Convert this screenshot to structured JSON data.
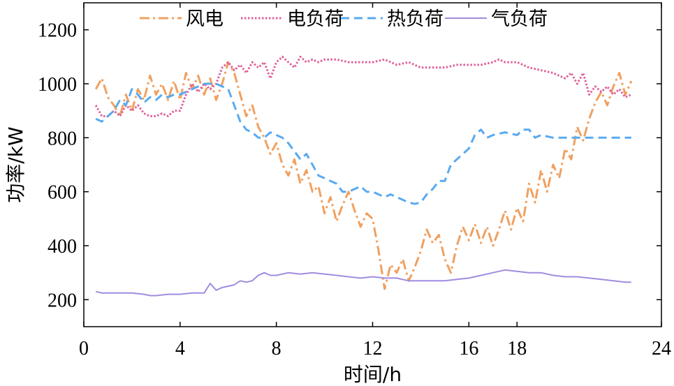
{
  "chart_data": {
    "type": "line",
    "title": "",
    "xlabel": "时间/h",
    "ylabel": "功率/kW",
    "xlim": [
      0,
      24
    ],
    "ylim": [
      100,
      1300
    ],
    "x_ticks": [
      0,
      4,
      8,
      12,
      16,
      18,
      24
    ],
    "x_tick_labels": [
      "0",
      "4",
      "8",
      "12",
      "16",
      "18",
      "24"
    ],
    "y_ticks": [
      200,
      400,
      600,
      800,
      1000,
      1200
    ],
    "y_tick_labels": [
      "200",
      "400",
      "600",
      "800",
      "1000",
      "1200"
    ],
    "grid": false,
    "legend_position": "top",
    "series": [
      {
        "name": "风电",
        "color": "#f0a060",
        "style": "dashdot",
        "points": [
          [
            0.5,
            980
          ],
          [
            0.75,
            1020
          ],
          [
            1.0,
            950
          ],
          [
            1.25,
            920
          ],
          [
            1.5,
            880
          ],
          [
            1.75,
            960
          ],
          [
            2.0,
            900
          ],
          [
            2.25,
            980
          ],
          [
            2.5,
            940
          ],
          [
            2.75,
            1030
          ],
          [
            3.0,
            960
          ],
          [
            3.25,
            1000
          ],
          [
            3.5,
            940
          ],
          [
            3.75,
            1010
          ],
          [
            4.0,
            940
          ],
          [
            4.25,
            1040
          ],
          [
            4.5,
            980
          ],
          [
            4.75,
            1030
          ],
          [
            5.0,
            960
          ],
          [
            5.25,
            1020
          ],
          [
            5.5,
            940
          ],
          [
            5.75,
            1000
          ],
          [
            6.0,
            1080
          ],
          [
            6.25,
            1040
          ],
          [
            6.5,
            960
          ],
          [
            6.75,
            880
          ],
          [
            7.0,
            920
          ],
          [
            7.25,
            840
          ],
          [
            7.5,
            800
          ],
          [
            7.75,
            740
          ],
          [
            8.0,
            780
          ],
          [
            8.25,
            700
          ],
          [
            8.5,
            660
          ],
          [
            8.75,
            720
          ],
          [
            9.0,
            630
          ],
          [
            9.25,
            680
          ],
          [
            9.5,
            600
          ],
          [
            9.75,
            620
          ],
          [
            10.0,
            520
          ],
          [
            10.25,
            580
          ],
          [
            10.5,
            490
          ],
          [
            10.75,
            550
          ],
          [
            11.0,
            600
          ],
          [
            11.25,
            530
          ],
          [
            11.5,
            470
          ],
          [
            11.75,
            520
          ],
          [
            12.0,
            500
          ],
          [
            12.25,
            380
          ],
          [
            12.5,
            240
          ],
          [
            12.75,
            330
          ],
          [
            13.0,
            300
          ],
          [
            13.25,
            350
          ],
          [
            13.5,
            270
          ],
          [
            13.75,
            320
          ],
          [
            14.0,
            380
          ],
          [
            14.25,
            460
          ],
          [
            14.5,
            410
          ],
          [
            14.75,
            440
          ],
          [
            15.0,
            350
          ],
          [
            15.25,
            300
          ],
          [
            15.5,
            400
          ],
          [
            15.75,
            470
          ],
          [
            16.0,
            420
          ],
          [
            16.25,
            480
          ],
          [
            16.5,
            410
          ],
          [
            16.75,
            470
          ],
          [
            17.0,
            400
          ],
          [
            17.25,
            460
          ],
          [
            17.5,
            530
          ],
          [
            17.75,
            460
          ],
          [
            18.0,
            540
          ],
          [
            18.25,
            490
          ],
          [
            18.5,
            630
          ],
          [
            18.75,
            560
          ],
          [
            19.0,
            680
          ],
          [
            19.25,
            600
          ],
          [
            19.5,
            700
          ],
          [
            19.75,
            650
          ],
          [
            20.0,
            760
          ],
          [
            20.25,
            720
          ],
          [
            20.5,
            840
          ],
          [
            20.75,
            790
          ],
          [
            21.0,
            870
          ],
          [
            21.25,
            930
          ],
          [
            21.5,
            970
          ],
          [
            21.75,
            920
          ],
          [
            22.0,
            990
          ],
          [
            22.25,
            1040
          ],
          [
            22.5,
            960
          ],
          [
            22.75,
            1010
          ]
        ]
      },
      {
        "name": "电负荷",
        "color": "#e0609a",
        "style": "dotted",
        "points": [
          [
            0.5,
            920
          ],
          [
            0.75,
            880
          ],
          [
            1.0,
            880
          ],
          [
            1.25,
            900
          ],
          [
            1.5,
            880
          ],
          [
            1.75,
            920
          ],
          [
            2.0,
            900
          ],
          [
            2.25,
            920
          ],
          [
            2.5,
            890
          ],
          [
            2.75,
            880
          ],
          [
            3.0,
            880
          ],
          [
            3.25,
            890
          ],
          [
            3.5,
            880
          ],
          [
            3.75,
            900
          ],
          [
            4.0,
            900
          ],
          [
            4.25,
            960
          ],
          [
            4.5,
            1000
          ],
          [
            4.75,
            970
          ],
          [
            5.0,
            1000
          ],
          [
            5.25,
            980
          ],
          [
            5.5,
            1000
          ],
          [
            5.75,
            1060
          ],
          [
            6.0,
            1080
          ],
          [
            6.25,
            1050
          ],
          [
            6.5,
            1070
          ],
          [
            6.75,
            1040
          ],
          [
            7.0,
            1080
          ],
          [
            7.25,
            1060
          ],
          [
            7.5,
            1080
          ],
          [
            7.75,
            1020
          ],
          [
            8.0,
            1080
          ],
          [
            8.25,
            1100
          ],
          [
            8.5,
            1080
          ],
          [
            8.75,
            1060
          ],
          [
            9.0,
            1100
          ],
          [
            9.25,
            1080
          ],
          [
            9.5,
            1090
          ],
          [
            9.75,
            1080
          ],
          [
            10.0,
            1090
          ],
          [
            10.5,
            1090
          ],
          [
            11.0,
            1080
          ],
          [
            11.5,
            1080
          ],
          [
            12.0,
            1080
          ],
          [
            12.5,
            1090
          ],
          [
            13.0,
            1070
          ],
          [
            13.5,
            1080
          ],
          [
            14.0,
            1060
          ],
          [
            14.5,
            1060
          ],
          [
            15.0,
            1060
          ],
          [
            15.5,
            1070
          ],
          [
            16.0,
            1070
          ],
          [
            16.5,
            1070
          ],
          [
            17.0,
            1080
          ],
          [
            17.25,
            1090
          ],
          [
            17.5,
            1080
          ],
          [
            18.0,
            1080
          ],
          [
            18.5,
            1060
          ],
          [
            19.0,
            1050
          ],
          [
            19.5,
            1040
          ],
          [
            20.0,
            1020
          ],
          [
            20.25,
            1040
          ],
          [
            20.5,
            1000
          ],
          [
            20.75,
            1040
          ],
          [
            21.0,
            960
          ],
          [
            21.25,
            990
          ],
          [
            21.5,
            970
          ],
          [
            21.75,
            990
          ],
          [
            22.0,
            960
          ],
          [
            22.25,
            980
          ],
          [
            22.5,
            950
          ],
          [
            22.75,
            960
          ]
        ]
      },
      {
        "name": "热负荷",
        "color": "#5aaaf0",
        "style": "dashed",
        "points": [
          [
            0.5,
            870
          ],
          [
            0.75,
            860
          ],
          [
            1.0,
            880
          ],
          [
            1.25,
            900
          ],
          [
            1.5,
            940
          ],
          [
            1.75,
            920
          ],
          [
            2.0,
            980
          ],
          [
            2.25,
            960
          ],
          [
            2.5,
            930
          ],
          [
            2.75,
            950
          ],
          [
            3.0,
            940
          ],
          [
            3.25,
            960
          ],
          [
            3.5,
            950
          ],
          [
            3.75,
            960
          ],
          [
            4.0,
            960
          ],
          [
            4.25,
            970
          ],
          [
            4.5,
            980
          ],
          [
            4.75,
            990
          ],
          [
            5.0,
            1000
          ],
          [
            5.5,
            1000
          ],
          [
            6.0,
            980
          ],
          [
            6.25,
            920
          ],
          [
            6.5,
            860
          ],
          [
            6.75,
            830
          ],
          [
            7.0,
            820
          ],
          [
            7.25,
            800
          ],
          [
            7.5,
            800
          ],
          [
            7.75,
            820
          ],
          [
            8.0,
            810
          ],
          [
            8.25,
            800
          ],
          [
            8.5,
            780
          ],
          [
            8.75,
            750
          ],
          [
            9.0,
            720
          ],
          [
            9.25,
            740
          ],
          [
            9.5,
            700
          ],
          [
            9.75,
            660
          ],
          [
            10.0,
            650
          ],
          [
            10.25,
            640
          ],
          [
            10.5,
            630
          ],
          [
            10.75,
            600
          ],
          [
            11.0,
            600
          ],
          [
            11.25,
            610
          ],
          [
            11.5,
            620
          ],
          [
            11.75,
            600
          ],
          [
            12.0,
            600
          ],
          [
            12.25,
            590
          ],
          [
            12.5,
            580
          ],
          [
            12.75,
            590
          ],
          [
            13.0,
            580
          ],
          [
            13.25,
            570
          ],
          [
            13.5,
            560
          ],
          [
            13.75,
            555
          ],
          [
            14.0,
            560
          ],
          [
            14.25,
            590
          ],
          [
            14.5,
            610
          ],
          [
            14.75,
            640
          ],
          [
            15.0,
            640
          ],
          [
            15.25,
            700
          ],
          [
            15.5,
            720
          ],
          [
            15.75,
            740
          ],
          [
            16.0,
            760
          ],
          [
            16.25,
            810
          ],
          [
            16.5,
            830
          ],
          [
            16.75,
            800
          ],
          [
            17.0,
            810
          ],
          [
            17.5,
            820
          ],
          [
            18.0,
            810
          ],
          [
            18.25,
            830
          ],
          [
            18.5,
            830
          ],
          [
            18.75,
            800
          ],
          [
            19.0,
            810
          ],
          [
            19.5,
            800
          ],
          [
            20.0,
            800
          ],
          [
            20.5,
            800
          ],
          [
            21.0,
            800
          ],
          [
            21.5,
            800
          ],
          [
            22.0,
            800
          ],
          [
            22.5,
            800
          ],
          [
            22.75,
            800
          ]
        ]
      },
      {
        "name": "气负荷",
        "color": "#a08ce0",
        "style": "solid",
        "points": [
          [
            0.5,
            230
          ],
          [
            0.75,
            225
          ],
          [
            1.0,
            225
          ],
          [
            1.5,
            225
          ],
          [
            2.0,
            225
          ],
          [
            2.5,
            220
          ],
          [
            2.75,
            215
          ],
          [
            3.0,
            215
          ],
          [
            3.5,
            220
          ],
          [
            4.0,
            220
          ],
          [
            4.5,
            225
          ],
          [
            5.0,
            225
          ],
          [
            5.25,
            260
          ],
          [
            5.5,
            235
          ],
          [
            5.75,
            245
          ],
          [
            6.0,
            250
          ],
          [
            6.25,
            255
          ],
          [
            6.5,
            270
          ],
          [
            6.75,
            265
          ],
          [
            7.0,
            270
          ],
          [
            7.25,
            290
          ],
          [
            7.5,
            300
          ],
          [
            7.75,
            290
          ],
          [
            8.0,
            290
          ],
          [
            8.5,
            300
          ],
          [
            9.0,
            295
          ],
          [
            9.5,
            300
          ],
          [
            10.0,
            295
          ],
          [
            10.5,
            290
          ],
          [
            11.0,
            285
          ],
          [
            11.5,
            280
          ],
          [
            12.0,
            285
          ],
          [
            12.5,
            280
          ],
          [
            13.0,
            280
          ],
          [
            13.5,
            270
          ],
          [
            14.0,
            270
          ],
          [
            14.5,
            270
          ],
          [
            15.0,
            270
          ],
          [
            15.5,
            275
          ],
          [
            16.0,
            280
          ],
          [
            16.5,
            290
          ],
          [
            17.0,
            300
          ],
          [
            17.25,
            305
          ],
          [
            17.5,
            310
          ],
          [
            18.0,
            305
          ],
          [
            18.5,
            300
          ],
          [
            19.0,
            300
          ],
          [
            19.5,
            290
          ],
          [
            20.0,
            285
          ],
          [
            20.5,
            285
          ],
          [
            21.0,
            280
          ],
          [
            21.5,
            275
          ],
          [
            22.0,
            270
          ],
          [
            22.5,
            265
          ],
          [
            22.75,
            265
          ]
        ]
      }
    ]
  }
}
